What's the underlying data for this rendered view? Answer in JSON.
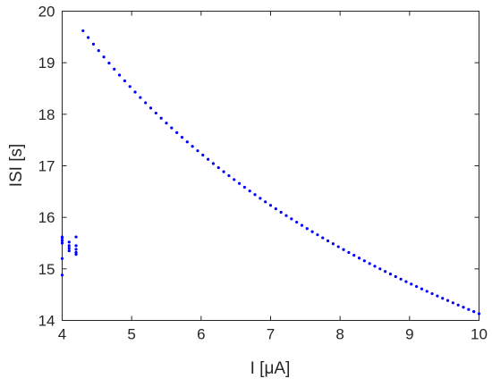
{
  "chart_data": {
    "type": "scatter",
    "title": "",
    "xlabel": "I [μA]",
    "ylabel": "ISI [s]",
    "xlim": [
      4,
      10
    ],
    "ylim": [
      14,
      20
    ],
    "xticks": [
      4,
      5,
      6,
      7,
      8,
      9,
      10
    ],
    "yticks": [
      14,
      15,
      16,
      17,
      18,
      19,
      20
    ],
    "grid": false,
    "legend": "none",
    "marker_color": "#0000ff",
    "axis_color": "#262626",
    "series": [
      {
        "curve": {
          "x_start": 4.3,
          "x_end": 10.0,
          "x_step": 0.075,
          "y_at_start": 19.62,
          "y_at_end": 14.13,
          "shape": "power-law decay (~ x^-0.36)"
        },
        "points": [
          [
            4.0,
            15.62
          ],
          [
            4.0,
            15.6
          ],
          [
            4.0,
            15.55
          ],
          [
            4.0,
            15.5
          ],
          [
            4.0,
            15.2
          ],
          [
            4.0,
            14.88
          ],
          [
            4.1,
            15.52
          ],
          [
            4.1,
            15.45
          ],
          [
            4.1,
            15.4
          ],
          [
            4.1,
            15.35
          ],
          [
            4.2,
            15.62
          ],
          [
            4.2,
            15.45
          ],
          [
            4.2,
            15.38
          ],
          [
            4.2,
            15.32
          ],
          [
            4.2,
            15.28
          ]
        ]
      }
    ]
  }
}
